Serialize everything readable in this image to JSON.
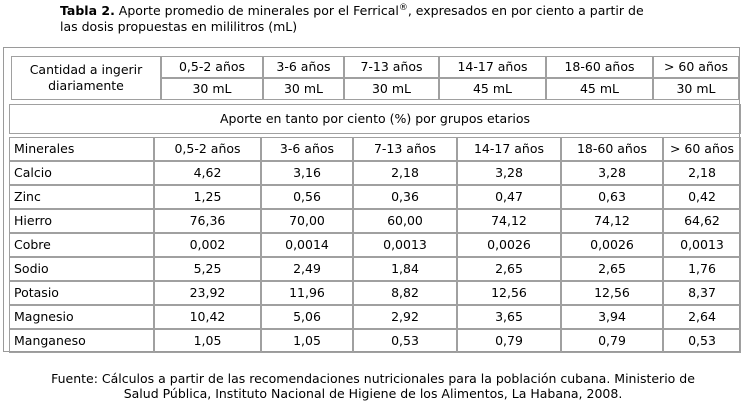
{
  "caption": {
    "label": "Tabla 2.",
    "text_before": " Aporte promedio de minerales por el Ferrical",
    "superscript": "®",
    "text_after": ", expresados en por ciento a partir de",
    "line2": "las dosis propuestas en mililitros (mL)"
  },
  "intake": {
    "label_line1": "Cantidad a ingerir",
    "label_line2": "diariamente",
    "groups": [
      "0,5-2 años",
      "3-6 años",
      "7-13 años",
      "14-17 años",
      "18-60 años",
      "> 60 años"
    ],
    "doses": [
      "30 mL",
      "30 mL",
      "30 mL",
      "45 mL",
      "45 mL",
      "30 mL"
    ]
  },
  "banner": "Aporte en tanto por ciento (%) por grupos etarios",
  "table": {
    "header_label": "Minerales",
    "columns": [
      "0,5-2 años",
      "3-6 años",
      "7-13 años",
      "14-17 años",
      "18-60 años",
      "> 60 años"
    ],
    "rows": [
      {
        "name": "Calcio",
        "values": [
          "4,62",
          "3,16",
          "2,18",
          "3,28",
          "3,28",
          "2,18"
        ]
      },
      {
        "name": "Zinc",
        "values": [
          "1,25",
          "0,56",
          "0,36",
          "0,47",
          "0,63",
          "0,42"
        ]
      },
      {
        "name": "Hierro",
        "values": [
          "76,36",
          "70,00",
          "60,00",
          "74,12",
          "74,12",
          "64,62"
        ]
      },
      {
        "name": "Cobre",
        "values": [
          "0,002",
          "0,0014",
          "0,0013",
          "0,0026",
          "0,0026",
          "0,0013"
        ]
      },
      {
        "name": "Sodio",
        "values": [
          "5,25",
          "2,49",
          "1,84",
          "2,65",
          "2,65",
          "1,76"
        ]
      },
      {
        "name": "Potasio",
        "values": [
          "23,92",
          "11,96",
          "8,82",
          "12,56",
          "12,56",
          "8,37"
        ]
      },
      {
        "name": "Magnesio",
        "values": [
          "10,42",
          "5,06",
          "2,92",
          "3,65",
          "3,94",
          "2,64"
        ]
      },
      {
        "name": "Manganeso",
        "values": [
          "1,05",
          "1,05",
          "0,53",
          "0,79",
          "0,79",
          "0,53"
        ]
      }
    ]
  },
  "footer": {
    "line1": "Fuente: Cálculos a partir de las recomendaciones nutricionales para la población cubana. Ministerio de",
    "line2": "Salud Pública, Instituto Nacional de Higiene de los Alimentos, La Habana, 2008."
  }
}
